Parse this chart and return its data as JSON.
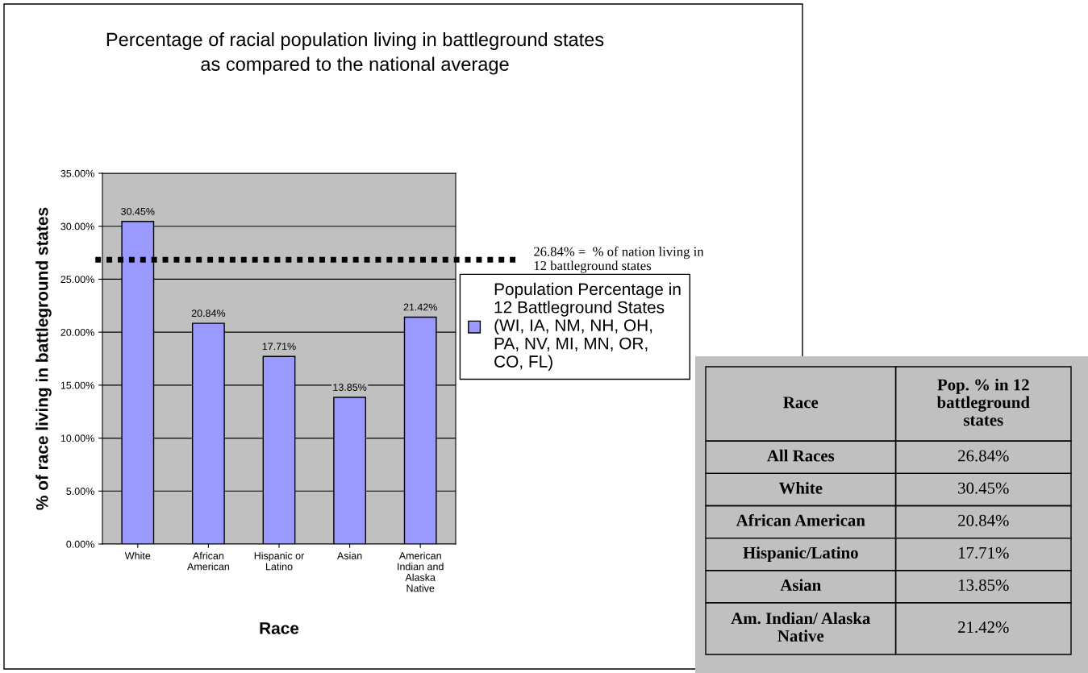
{
  "chart_data": {
    "type": "bar",
    "title": "Percentage of racial population living in battleground states\nas compared to the national average",
    "xlabel": "Race",
    "ylabel": "% of race living in battleground states",
    "categories": [
      "White",
      "African\nAmerican",
      "Hispanic or\nLatino",
      "Asian",
      "American\nIndian and\nAlaska\nNative"
    ],
    "series": [
      {
        "name": "Population Percentage in\n12 Battleground States\n(WI, IA, NM, NH, OH,\nPA, NV, MI, MN, OR,\nCO, FL)",
        "color": "#9999ff",
        "values": [
          30.45,
          20.84,
          17.71,
          13.85,
          21.42
        ],
        "value_labels": [
          "30.45%",
          "20.84%",
          "17.71%",
          "13.85%",
          "21.42%"
        ]
      }
    ],
    "ylim": [
      0,
      35
    ],
    "yticks": [
      {
        "value": 0,
        "label": "0.00%"
      },
      {
        "value": 5,
        "label": "5.00%"
      },
      {
        "value": 10,
        "label": "10.00%"
      },
      {
        "value": 15,
        "label": "15.00%"
      },
      {
        "value": 20,
        "label": "20.00%"
      },
      {
        "value": 25,
        "label": "25.00%"
      },
      {
        "value": 30,
        "label": "30.00%"
      },
      {
        "value": 35,
        "label": "35.00%"
      }
    ],
    "grid": "y",
    "legend": "right",
    "ref_lines": [
      {
        "axis": "y",
        "value": 26.84,
        "label": "26.84% =  % of nation living in\n12 battleground states",
        "color": "#000000",
        "line_style": "dotted"
      }
    ],
    "annotations": [
      "Race",
      "Pop. % in 12\nbattleground\nstates",
      "All Races",
      "26.84%",
      "White",
      "30.45%",
      "African American",
      "20.84%",
      "Hispanic/Latino",
      "17.71%",
      "Asian",
      "13.85%",
      "Am. Indian/ Alaska\nNative",
      "21.42%"
    ]
  }
}
